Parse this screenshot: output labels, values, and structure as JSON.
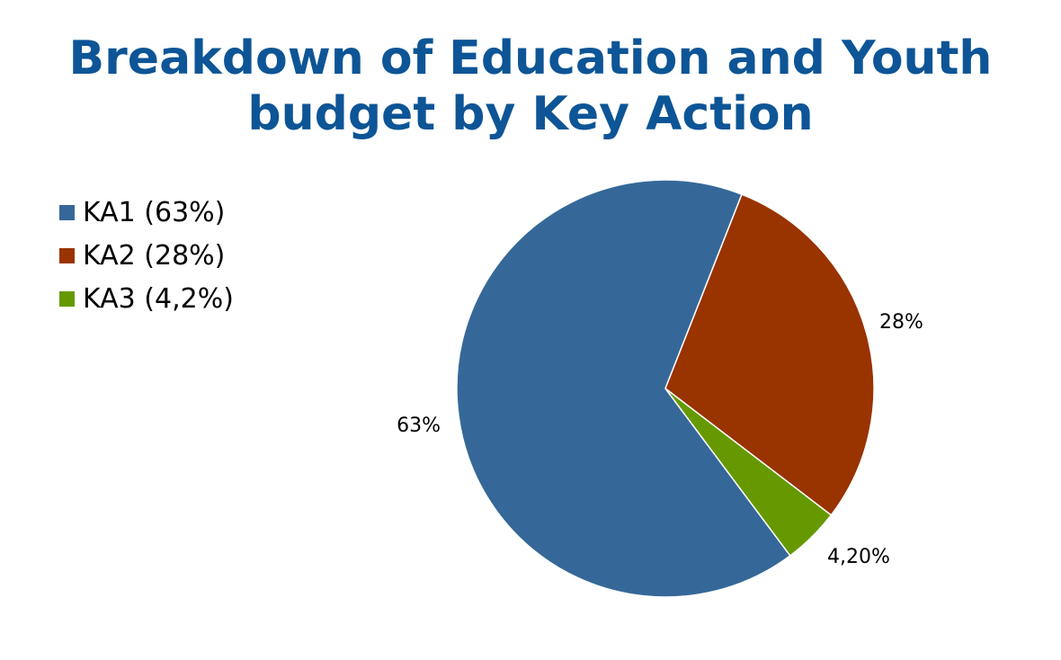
{
  "chart_data": {
    "type": "pie",
    "title_lines": [
      "Breakdown of Education and Youth",
      "budget by Key Action"
    ],
    "slices": [
      {
        "name": "KA1 (63%)",
        "value": 63,
        "label": "63%",
        "color": "#356898"
      },
      {
        "name": "KA2 (28%)",
        "value": 28,
        "label": "28%",
        "color": "#993300"
      },
      {
        "name": "KA3 (4,2%)",
        "value": 4.2,
        "label": "4,20%",
        "color": "#669900"
      }
    ],
    "legend_position": "left"
  }
}
